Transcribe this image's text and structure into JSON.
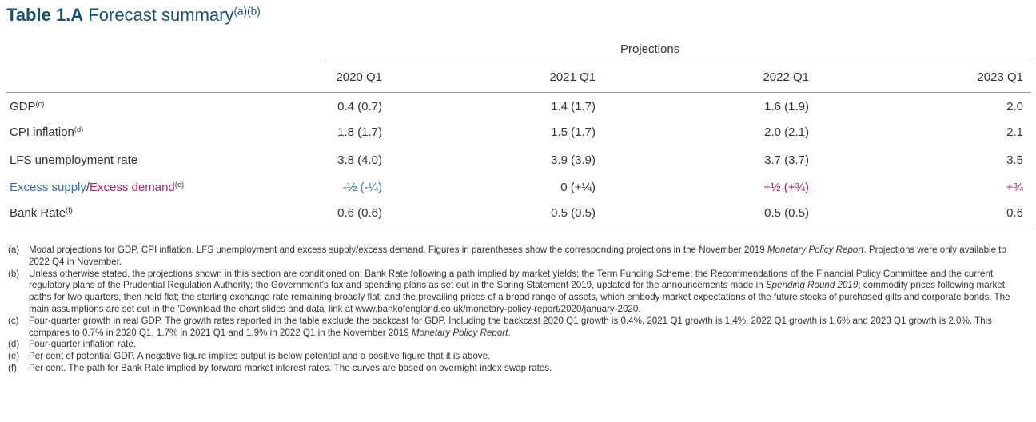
{
  "header": {
    "label": "Table 1.A",
    "text": "Forecast summary",
    "note": "(a)(b)"
  },
  "table": {
    "group_header": "Projections",
    "columns": [
      "2020 Q1",
      "2021 Q1",
      "2022 Q1",
      "2023 Q1"
    ],
    "rows": [
      {
        "label_parts": [
          "GDP"
        ],
        "label_colors": [
          "#333333"
        ],
        "note": "(c)",
        "cells": [
          "0.4 (0.7)",
          "1.4 (1.7)",
          "1.6 (1.9)",
          "2.0"
        ],
        "cell_colors": [
          "#333333",
          "#333333",
          "#333333",
          "#333333"
        ]
      },
      {
        "label_parts": [
          "CPI inflation"
        ],
        "label_colors": [
          "#333333"
        ],
        "note": "(d)",
        "cells": [
          "1.8 (1.7)",
          "1.5 (1.7)",
          "2.0 (2.1)",
          "2.1"
        ],
        "cell_colors": [
          "#333333",
          "#333333",
          "#333333",
          "#333333"
        ]
      },
      {
        "label_parts": [
          "LFS unemployment rate"
        ],
        "label_colors": [
          "#333333"
        ],
        "cells": [
          "3.8 (4.0)",
          "3.9 (3.9)",
          "3.7 (3.7)",
          "3.5"
        ],
        "cell_colors": [
          "#333333",
          "#333333",
          "#333333",
          "#333333"
        ]
      },
      {
        "label_parts": [
          "Excess supply",
          "/",
          "Excess demand"
        ],
        "label_colors": [
          "#3a6fa8",
          "#333333",
          "#a3286e"
        ],
        "note": "(e)",
        "cells": [
          "-½ (-¼)",
          "0 (+¼)",
          "+½ (+¾)",
          "+¾"
        ],
        "cell_colors": [
          "#3a6fa8",
          "#333333",
          "#a3286e",
          "#a3286e"
        ]
      },
      {
        "label_parts": [
          "Bank Rate"
        ],
        "label_colors": [
          "#333333"
        ],
        "note": "(f)",
        "cells": [
          "0.6 (0.6)",
          "0.5 (0.5)",
          "0.5 (0.5)",
          "0.6"
        ],
        "cell_colors": [
          "#333333",
          "#333333",
          "#333333",
          "#333333"
        ]
      }
    ]
  },
  "footnotes": [
    {
      "mark": "(a)",
      "parts": [
        {
          "text": "Modal projections for GDP, CPI inflation, LFS unemployment and excess supply/excess demand. Figures in parentheses show the corresponding projections in the November 2019 "
        },
        {
          "text": "Monetary Policy Report",
          "italic": true
        },
        {
          "text": ". Projections were only available to 2022 Q4 in November."
        }
      ]
    },
    {
      "mark": "(b)",
      "parts": [
        {
          "text": "Unless otherwise stated, the projections shown in this section are conditioned on: Bank Rate following a path implied by market yields; the Term Funding Scheme; the Recommendations of the Financial Policy Committee and the current regulatory plans of the Prudential Regulation Authority; the Government's tax and spending plans as set out in the Spring Statement 2019, updated for the announcements made in "
        },
        {
          "text": "Spending Round 2019",
          "italic": true
        },
        {
          "text": "; commodity prices following market paths for two quarters, then held flat; the sterling exchange rate remaining broadly flat; and the prevailing prices of a broad range of assets, which embody market expectations of the future stocks of purchased gilts and corporate bonds. The main assumptions are set out in the 'Download the chart slides and data' link at "
        },
        {
          "text": "www.bankofengland.co.uk/monetary-policy-report/2020/january-2020",
          "link": true
        },
        {
          "text": "."
        }
      ]
    },
    {
      "mark": "(c)",
      "parts": [
        {
          "text": "Four-quarter growth in real GDP. The growth rates reported in the table exclude the backcast for GDP. Including the backcast 2020 Q1 growth is 0.4%, 2021 Q1 growth is 1.4%, 2022 Q1 growth is 1.6% and 2023 Q1 growth is 2.0%. This compares to 0.7% in 2020 Q1, 1.7% in 2021 Q1 and 1.9% in 2022 Q1 in the November 2019 "
        },
        {
          "text": "Monetary Policy Report",
          "italic": true
        },
        {
          "text": "."
        }
      ]
    },
    {
      "mark": "(d)",
      "parts": [
        {
          "text": "Four-quarter inflation rate."
        }
      ]
    },
    {
      "mark": "(e)",
      "parts": [
        {
          "text": "Per cent of potential GDP. A negative figure implies output is below potential and a positive figure that it is above."
        }
      ]
    },
    {
      "mark": "(f)",
      "parts": [
        {
          "text": "Per cent. The path for Bank Rate implied by forward market interest rates. The curves are based on overnight index swap rates."
        }
      ]
    }
  ]
}
